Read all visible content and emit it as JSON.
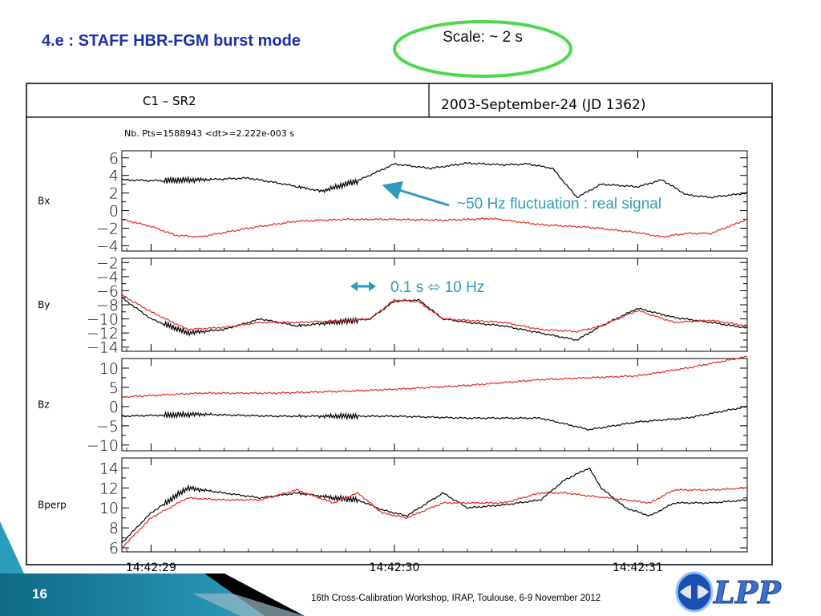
{
  "slide": {
    "title": "4.e : STAFF HBR-FGM burst mode",
    "scale_callout": "Scale: ~ 2 s",
    "slide_number": "16",
    "footer": "16th Cross-Calibration Workshop, IRAP, Toulouse, 6-9 November 2012",
    "logo_text": "LPP"
  },
  "colors": {
    "title": "#1e2fa8",
    "callout_ellipse": "#4cd94c",
    "annotation": "#2e9bb8",
    "series_black": "#000000",
    "series_red": "#e8281e",
    "footer_teal": "#1a7a96"
  },
  "chart_data": {
    "type": "line",
    "header_left": "C1 – SR2",
    "header_right": "2003-September-24   (JD  1362)",
    "info": "Nb. Pts=1588943    <dt>=2.222e-003 s",
    "x_ticks": [
      "14:42:29",
      "14:42:30",
      "14:42:31"
    ],
    "x_tick_values": [
      0,
      1,
      2
    ],
    "xlim": [
      -0.12,
      2.45
    ],
    "panels": [
      {
        "name": "Bx",
        "ylim": [
          -4.6,
          6.8
        ],
        "yticks": [
          6,
          4,
          2,
          0,
          -2,
          -4
        ],
        "ytick_labels": [
          "6",
          "4",
          "2",
          "0",
          "−2",
          "−4"
        ],
        "series": [
          {
            "color": "black",
            "x": [
              -0.12,
              0.0,
              0.2,
              0.4,
              0.55,
              0.7,
              0.85,
              1.0,
              1.15,
              1.3,
              1.45,
              1.55,
              1.65,
              1.75,
              1.85,
              2.0,
              2.1,
              2.2,
              2.3,
              2.45
            ],
            "y": [
              3.5,
              3.4,
              3.5,
              3.7,
              3.0,
              2.2,
              3.4,
              5.3,
              4.8,
              5.4,
              5.2,
              5.3,
              4.8,
              1.5,
              3.0,
              2.7,
              3.5,
              1.8,
              1.5,
              2.0
            ]
          },
          {
            "color": "red",
            "x": [
              -0.12,
              0.0,
              0.1,
              0.2,
              0.4,
              0.6,
              0.8,
              1.0,
              1.2,
              1.4,
              1.6,
              1.8,
              2.0,
              2.1,
              2.2,
              2.3,
              2.45
            ],
            "y": [
              -1.0,
              -1.8,
              -2.8,
              -3.0,
              -2.0,
              -1.2,
              -1.0,
              -1.0,
              -1.1,
              -0.9,
              -1.6,
              -1.9,
              -2.5,
              -3.0,
              -2.6,
              -2.6,
              -1.0
            ]
          }
        ],
        "annotation": "~50 Hz fluctuation : real signal"
      },
      {
        "name": "By",
        "ylim": [
          -14.6,
          -1.4
        ],
        "yticks": [
          -2,
          -4,
          -6,
          -8,
          -10,
          -12,
          -14
        ],
        "ytick_labels": [
          "−2",
          "−4",
          "−6",
          "−8",
          "−10",
          "−12",
          "−14"
        ],
        "series": [
          {
            "color": "black",
            "x": [
              -0.12,
              0.0,
              0.15,
              0.3,
              0.45,
              0.6,
              0.75,
              0.9,
              1.0,
              1.1,
              1.2,
              1.3,
              1.45,
              1.6,
              1.75,
              1.85,
              2.0,
              2.15,
              2.3,
              2.45
            ],
            "y": [
              -7.0,
              -10.0,
              -12.0,
              -11.5,
              -10.0,
              -11.0,
              -10.5,
              -10.0,
              -7.5,
              -7.3,
              -10.0,
              -10.5,
              -11.0,
              -12.0,
              -13.0,
              -11.0,
              -8.5,
              -9.8,
              -10.5,
              -11.3
            ]
          },
          {
            "color": "red",
            "x": [
              -0.12,
              0.0,
              0.15,
              0.3,
              0.45,
              0.6,
              0.75,
              0.9,
              1.0,
              1.1,
              1.2,
              1.3,
              1.45,
              1.6,
              1.75,
              1.85,
              2.0,
              2.15,
              2.3,
              2.45
            ],
            "y": [
              -6.6,
              -9.0,
              -11.5,
              -11.2,
              -10.5,
              -10.5,
              -10.3,
              -10.0,
              -7.3,
              -7.6,
              -10.0,
              -10.2,
              -10.5,
              -11.5,
              -11.8,
              -11.0,
              -8.8,
              -10.5,
              -10.2,
              -11.0
            ]
          }
        ],
        "annotation": "0.1 s ⬄ 10 Hz"
      },
      {
        "name": "Bz",
        "ylim": [
          -11.5,
          12.5
        ],
        "yticks": [
          10,
          5,
          0,
          -5,
          -10
        ],
        "ytick_labels": [
          "10",
          "5",
          "0",
          "−5",
          "−10"
        ],
        "series": [
          {
            "color": "black",
            "x": [
              -0.12,
              0.2,
              0.5,
              0.8,
              1.0,
              1.3,
              1.6,
              1.8,
              2.0,
              2.2,
              2.45
            ],
            "y": [
              -2.5,
              -2.0,
              -2.5,
              -2.5,
              -2.5,
              -3.0,
              -3.0,
              -6.0,
              -4.0,
              -3.0,
              0.0
            ]
          },
          {
            "color": "red",
            "x": [
              -0.12,
              0.2,
              0.5,
              0.8,
              1.0,
              1.3,
              1.6,
              1.8,
              2.0,
              2.2,
              2.45
            ],
            "y": [
              2.5,
              3.5,
              3.5,
              4.0,
              4.5,
              5.5,
              7.0,
              7.5,
              8.0,
              10.0,
              13.0
            ]
          }
        ]
      },
      {
        "name": "Bperp",
        "ylim": [
          5.6,
          15.0
        ],
        "yticks": [
          14,
          12,
          10,
          8,
          6
        ],
        "ytick_labels": [
          "14",
          "12",
          "10",
          "8",
          "6"
        ],
        "series": [
          {
            "color": "black",
            "x": [
              -0.12,
              0.0,
              0.15,
              0.3,
              0.45,
              0.6,
              0.75,
              0.85,
              0.95,
              1.05,
              1.2,
              1.3,
              1.45,
              1.6,
              1.7,
              1.8,
              1.85,
              1.95,
              2.05,
              2.15,
              2.3,
              2.45
            ],
            "y": [
              6.5,
              9.5,
              12.0,
              11.5,
              11.0,
              11.5,
              11.0,
              10.8,
              9.8,
              9.2,
              11.5,
              10.0,
              10.3,
              10.8,
              12.8,
              14.0,
              12.0,
              10.0,
              9.2,
              10.5,
              10.5,
              10.8
            ]
          },
          {
            "color": "red",
            "x": [
              -0.12,
              0.0,
              0.15,
              0.3,
              0.45,
              0.6,
              0.75,
              0.85,
              0.95,
              1.05,
              1.2,
              1.3,
              1.45,
              1.6,
              1.7,
              1.8,
              1.95,
              2.05,
              2.15,
              2.3,
              2.45
            ],
            "y": [
              6.0,
              9.0,
              11.0,
              10.8,
              10.8,
              11.8,
              10.5,
              11.5,
              9.5,
              9.0,
              10.5,
              10.5,
              10.5,
              11.5,
              11.5,
              11.2,
              10.8,
              10.5,
              11.8,
              11.8,
              12.0
            ]
          }
        ]
      }
    ]
  }
}
